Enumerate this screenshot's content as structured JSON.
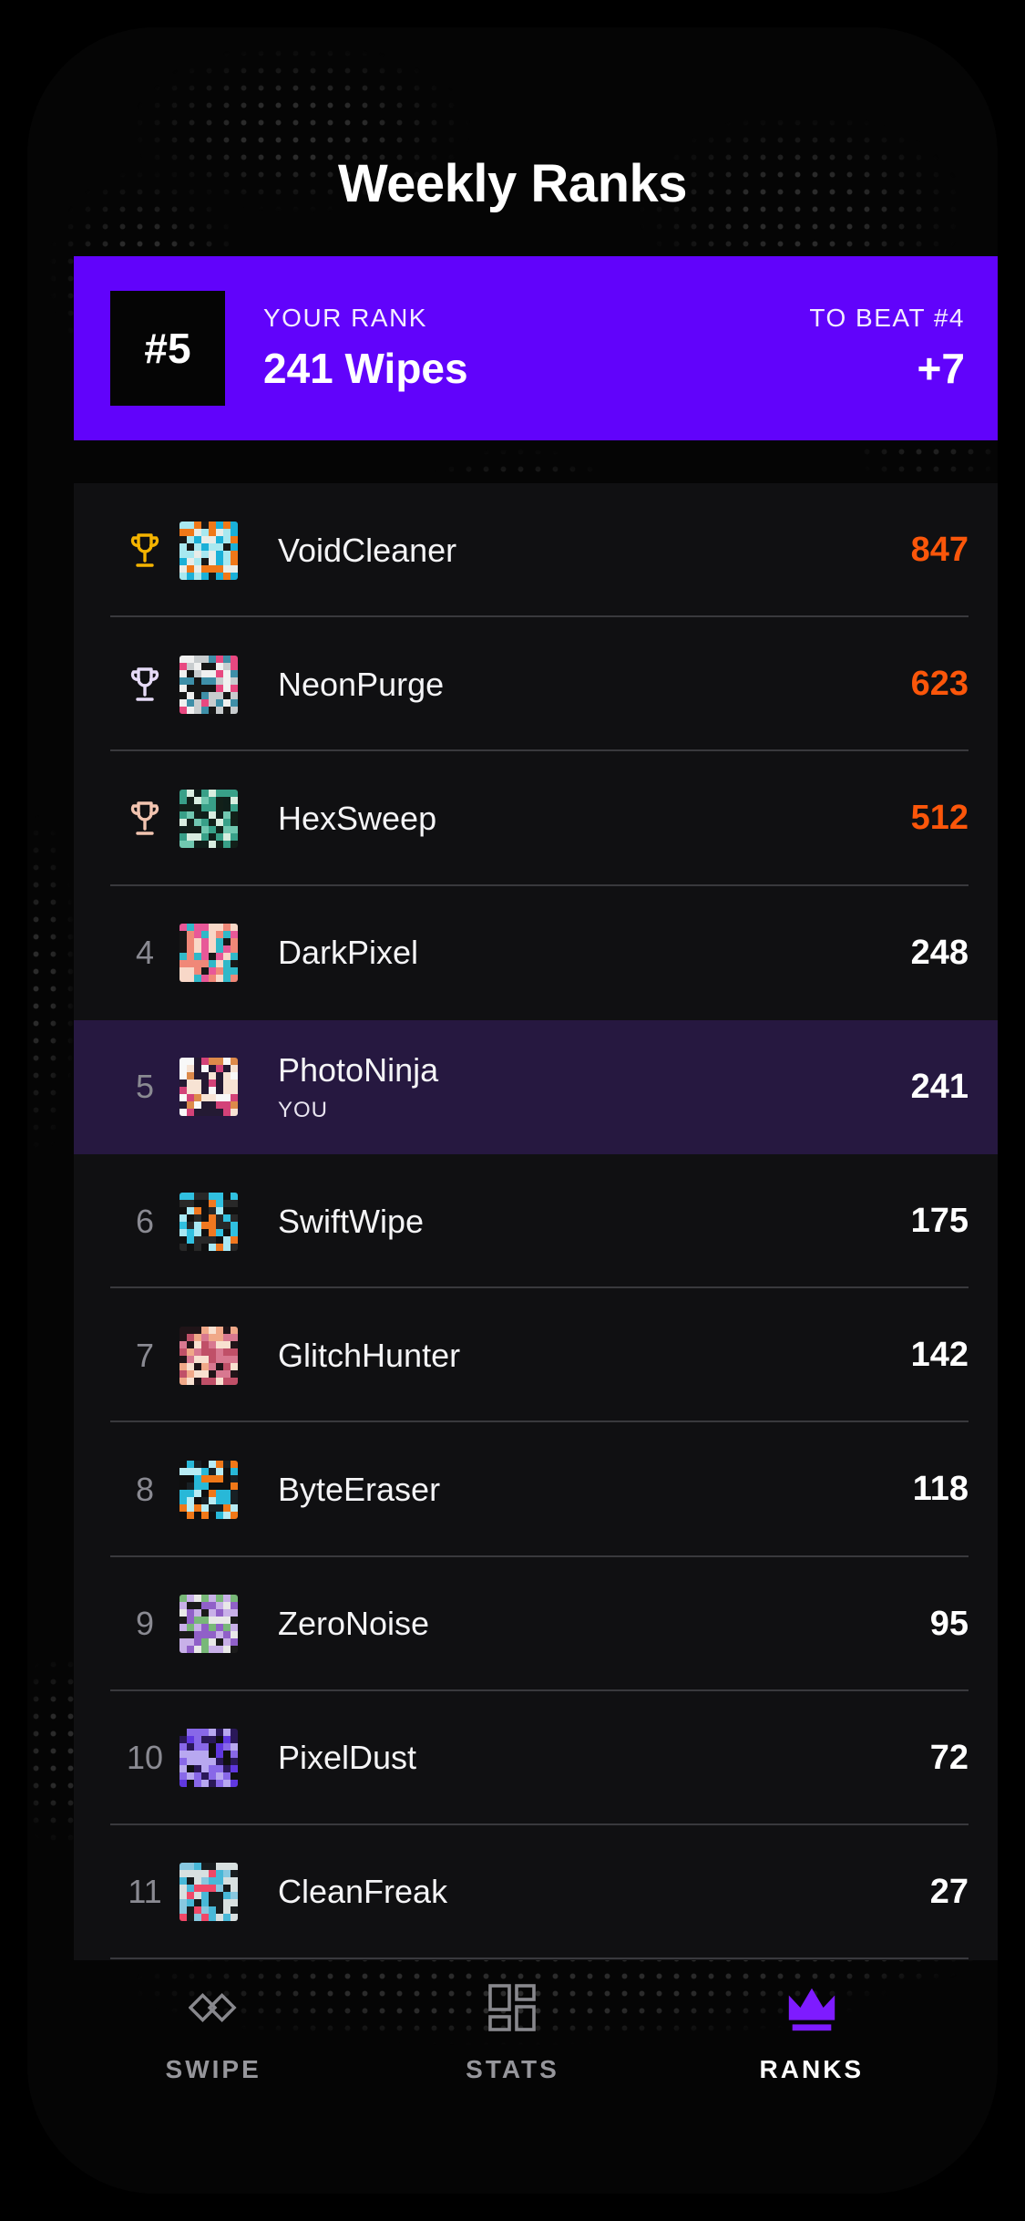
{
  "header": {
    "title": "Weekly Ranks"
  },
  "your_rank_banner": {
    "rank_badge": "#5",
    "label": "YOUR RANK",
    "value": "241 Wipes",
    "to_beat_label": "TO BEAT #4",
    "to_beat_delta": "+7",
    "background_color": "#6103FB"
  },
  "leaderboard": {
    "highlight_color": "#261840",
    "top_score_color": "#FB560A",
    "rows": [
      {
        "rank": 1,
        "trophy_color": "#F5B400",
        "name": "VoidCleaner",
        "score": "847",
        "score_color": "#FB560A",
        "avatar_palette": [
          "#1ab0d8",
          "#f07818",
          "#a8e8f0",
          "#e8ece8",
          "#181818"
        ]
      },
      {
        "rank": 2,
        "trophy_color": "#E6DBF7",
        "name": "NeonPurge",
        "score": "623",
        "score_color": "#FB560A",
        "avatar_palette": [
          "#e84880",
          "#3e8fa8",
          "#c8ccce",
          "#161616",
          "#f0f0f0"
        ]
      },
      {
        "rank": 3,
        "trophy_color": "#F2C4B0",
        "name": "HexSweep",
        "score": "512",
        "score_color": "#FB560A",
        "avatar_palette": [
          "#38a088",
          "#d8eee0",
          "#0f1f1a",
          "#70c8b0",
          "#122019"
        ]
      },
      {
        "rank": 4,
        "name": "DarkPixel",
        "score": "248",
        "avatar_palette": [
          "#f08878",
          "#f8d8c8",
          "#e85898",
          "#30b8c8",
          "#181818"
        ]
      },
      {
        "rank": 5,
        "name": "PhotoNinja",
        "sub": "YOU",
        "score": "241",
        "highlighted": true,
        "avatar_palette": [
          "#d34278",
          "#dd8a4a",
          "#f7e3d4",
          "#241a33",
          "#f8f8f8"
        ]
      },
      {
        "rank": 6,
        "name": "SwiftWipe",
        "score": "175",
        "avatar_palette": [
          "#f07820",
          "#30c0e0",
          "#a8e8f4",
          "#282828",
          "#101010"
        ]
      },
      {
        "rank": 7,
        "name": "GlitchHunter",
        "score": "142",
        "avatar_palette": [
          "#c05068",
          "#f0a888",
          "#f8e0d0",
          "#201418",
          "#d87890"
        ]
      },
      {
        "rank": 8,
        "name": "ByteEraser",
        "score": "118",
        "avatar_palette": [
          "#28b8d8",
          "#f07818",
          "#b8ecf4",
          "#182024",
          "#0f0f0f"
        ]
      },
      {
        "rank": 9,
        "name": "ZeroNoise",
        "score": "95",
        "avatar_palette": [
          "#9060c8",
          "#78b878",
          "#c8b0e8",
          "#1a1a1a",
          "#e8e8e8"
        ]
      },
      {
        "rank": 10,
        "name": "PixelDust",
        "score": "72",
        "avatar_palette": [
          "#6038e0",
          "#2a1858",
          "#b8a8f0",
          "#101010",
          "#8868e8"
        ]
      },
      {
        "rank": 11,
        "name": "CleanFreak",
        "score": "27",
        "avatar_palette": [
          "#88c8e0",
          "#d8e0e0",
          "#181c1e",
          "#f04868",
          "#48b8d8"
        ]
      }
    ]
  },
  "tab_bar": {
    "active_color": "#7E1BFF",
    "tabs": [
      {
        "id": "swipe",
        "label": "SWIPE",
        "active": false
      },
      {
        "id": "stats",
        "label": "STATS",
        "active": false
      },
      {
        "id": "ranks",
        "label": "RANKS",
        "active": true
      }
    ]
  }
}
